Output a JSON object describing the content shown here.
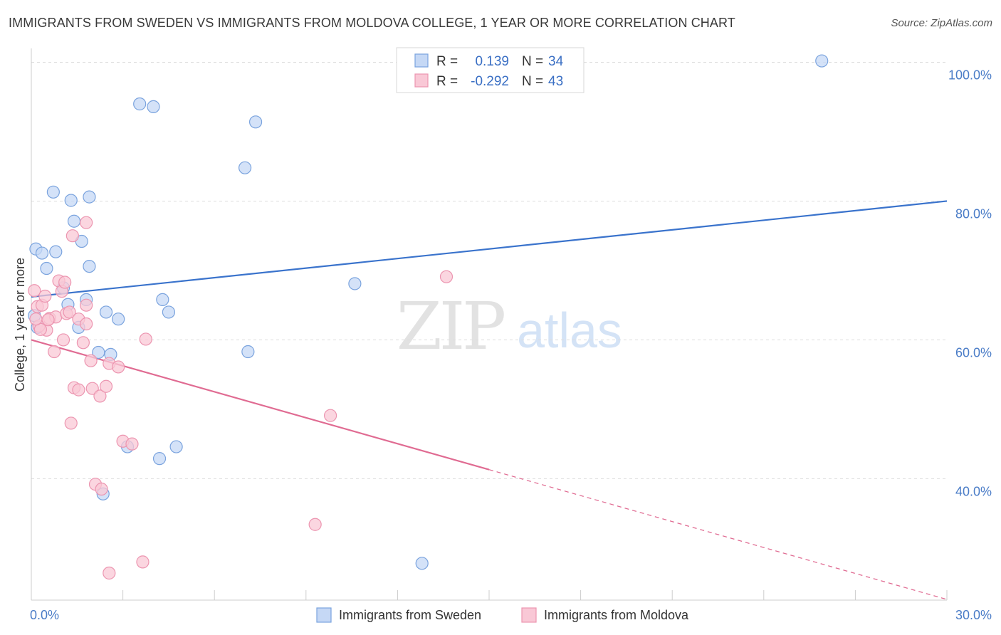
{
  "header": {
    "title": "IMMIGRANTS FROM SWEDEN VS IMMIGRANTS FROM MOLDOVA COLLEGE, 1 YEAR OR MORE CORRELATION CHART",
    "source": "Source: ZipAtlas.com"
  },
  "watermark": {
    "zip": "ZIP",
    "atlas": "atlas"
  },
  "stats": {
    "r_label": "R =",
    "n_label": "N =",
    "sweden": {
      "r": "0.139",
      "n": "34"
    },
    "moldova": {
      "r": "-0.292",
      "n": "43"
    }
  },
  "colors": {
    "sweden_fill": "#c5d8f5",
    "sweden_stroke": "#7aa3de",
    "sweden_line": "#3a73cc",
    "moldova_fill": "#f9c8d6",
    "moldova_stroke": "#ec95b0",
    "moldova_line": "#e06b92",
    "grid": "#dddddd",
    "axis_text": "#4a7cc7"
  },
  "chart_data": {
    "type": "scatter",
    "title": "IMMIGRANTS FROM SWEDEN VS IMMIGRANTS FROM MOLDOVA COLLEGE, 1 YEAR OR MORE CORRELATION CHART",
    "xlabel": "",
    "ylabel": "College, 1 year or more",
    "xlim": [
      0,
      30
    ],
    "ylim": [
      22.5,
      102
    ],
    "x_tick_labels": [
      {
        "value": 0,
        "label": "0.0%"
      },
      {
        "value": 30,
        "label": "30.0%"
      }
    ],
    "y_tick_labels": [
      {
        "value": 100,
        "label": "100.0%"
      },
      {
        "value": 80,
        "label": "80.0%"
      },
      {
        "value": 60,
        "label": "60.0%"
      },
      {
        "value": 40,
        "label": "40.0%"
      }
    ],
    "legend_position": "bottom",
    "series": [
      {
        "name": "Immigrants from Sweden",
        "color": "#7aa3de",
        "points": [
          [
            0.15,
            73.1
          ],
          [
            0.35,
            72.5
          ],
          [
            0.5,
            70.3
          ],
          [
            0.8,
            72.7
          ],
          [
            0.72,
            81.3
          ],
          [
            1.3,
            80.1
          ],
          [
            1.4,
            77.1
          ],
          [
            1.65,
            74.2
          ],
          [
            1.9,
            80.6
          ],
          [
            1.9,
            70.6
          ],
          [
            1.05,
            67.5
          ],
          [
            1.2,
            65.1
          ],
          [
            1.8,
            65.8
          ],
          [
            1.55,
            61.8
          ],
          [
            2.45,
            64.0
          ],
          [
            2.85,
            63.0
          ],
          [
            2.2,
            58.2
          ],
          [
            2.6,
            57.9
          ],
          [
            3.55,
            94.0
          ],
          [
            4.0,
            93.6
          ],
          [
            4.3,
            65.8
          ],
          [
            4.5,
            64.0
          ],
          [
            7.0,
            84.8
          ],
          [
            7.35,
            91.4
          ],
          [
            7.1,
            58.3
          ],
          [
            10.6,
            68.1
          ],
          [
            25.9,
            100.2
          ],
          [
            3.15,
            44.6
          ],
          [
            4.2,
            42.9
          ],
          [
            4.75,
            44.6
          ],
          [
            2.35,
            37.8
          ],
          [
            12.8,
            27.8
          ],
          [
            0.1,
            63.5
          ],
          [
            0.2,
            61.8
          ]
        ],
        "trend": {
          "x0": 0,
          "y0": 66.2,
          "x1": 30,
          "y1": 80.0
        }
      },
      {
        "name": "Immigrants from Moldova",
        "color": "#ec95b0",
        "points": [
          [
            0.1,
            67.1
          ],
          [
            0.2,
            64.8
          ],
          [
            0.35,
            65.0
          ],
          [
            0.45,
            66.3
          ],
          [
            0.5,
            61.4
          ],
          [
            0.6,
            63.1
          ],
          [
            0.8,
            63.3
          ],
          [
            0.9,
            68.5
          ],
          [
            1.0,
            67.0
          ],
          [
            1.1,
            68.3
          ],
          [
            1.15,
            63.8
          ],
          [
            1.25,
            64.0
          ],
          [
            1.55,
            63.0
          ],
          [
            1.8,
            65.0
          ],
          [
            1.8,
            62.3
          ],
          [
            0.75,
            58.3
          ],
          [
            1.05,
            60.0
          ],
          [
            1.7,
            59.6
          ],
          [
            1.95,
            57.0
          ],
          [
            2.55,
            56.6
          ],
          [
            2.85,
            56.1
          ],
          [
            1.35,
            75.0
          ],
          [
            1.8,
            76.9
          ],
          [
            1.4,
            53.1
          ],
          [
            1.55,
            52.8
          ],
          [
            2.0,
            53.0
          ],
          [
            2.25,
            51.9
          ],
          [
            2.45,
            53.3
          ],
          [
            1.3,
            48.0
          ],
          [
            3.0,
            45.4
          ],
          [
            3.3,
            45.0
          ],
          [
            3.75,
            60.1
          ],
          [
            13.6,
            69.1
          ],
          [
            9.8,
            49.1
          ],
          [
            2.1,
            39.2
          ],
          [
            2.3,
            38.5
          ],
          [
            9.3,
            33.4
          ],
          [
            3.65,
            28.0
          ],
          [
            2.55,
            26.4
          ],
          [
            0.25,
            62.0
          ],
          [
            0.3,
            61.5
          ],
          [
            0.15,
            63.0
          ],
          [
            0.55,
            62.9
          ]
        ],
        "trend": {
          "x0": 0,
          "y0": 60.0,
          "x1": 15,
          "y1": 41.3,
          "dashed_to": {
            "x": 30,
            "y": 22.6
          }
        }
      }
    ]
  }
}
